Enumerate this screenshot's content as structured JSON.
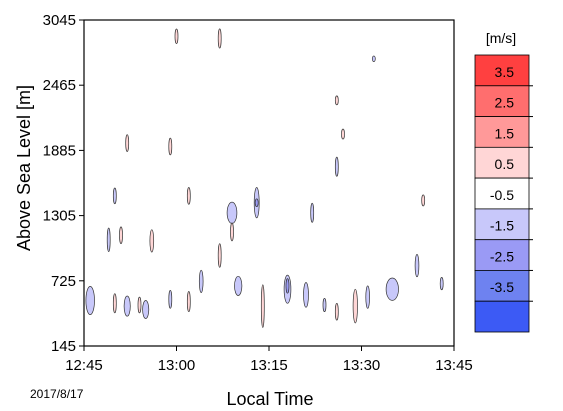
{
  "chart_data": {
    "type": "heatmap",
    "title": "",
    "xlabel": "Local Time",
    "ylabel": "Above Sea Level [m]",
    "x_ticks": [
      "12:45",
      "13:00",
      "13:15",
      "13:30",
      "13:45"
    ],
    "x_range": [
      "12:45",
      "13:45"
    ],
    "y_ticks": [
      145,
      725,
      1305,
      1885,
      2465,
      3045
    ],
    "y_range": [
      145,
      3045
    ],
    "date_label": "2017/8/17",
    "colorbar": {
      "unit_label": "[m/s]",
      "tick_labels": [
        "3.5",
        "2.5",
        "1.5",
        "0.5",
        "-0.5",
        "-1.5",
        "-2.5",
        "-3.5"
      ],
      "bands": [
        {
          "range": "above 3.5",
          "color": "#ff4040"
        },
        {
          "range": "2.5 to 3.5",
          "color": "#ff6e6e"
        },
        {
          "range": "1.5 to 2.5",
          "color": "#ff9999"
        },
        {
          "range": "0.5 to 1.5",
          "color": "#ffd6d6"
        },
        {
          "range": "-0.5 to 0.5",
          "color": "#ffffff"
        },
        {
          "range": "-1.5 to -0.5",
          "color": "#c8c8fa"
        },
        {
          "range": "-2.5 to -1.5",
          "color": "#9a9af5"
        },
        {
          "range": "-3.5 to -2.5",
          "color": "#6e82f0"
        },
        {
          "range": "below -3.5",
          "color": "#3c5af5"
        }
      ]
    },
    "regions": [
      {
        "t": "12:46",
        "alt": 550,
        "dt": 1.4,
        "dalt": 250,
        "level": -1
      },
      {
        "t": "12:52",
        "alt": 500,
        "dt": 1.0,
        "dalt": 180,
        "level": -1
      },
      {
        "t": "12:55",
        "alt": 470,
        "dt": 1.0,
        "dalt": 160,
        "level": -1
      },
      {
        "t": "12:59",
        "alt": 560,
        "dt": 0.5,
        "dalt": 160,
        "level": -1
      },
      {
        "t": "12:49",
        "alt": 1090,
        "dt": 0.4,
        "dalt": 210,
        "level": -1
      },
      {
        "t": "12:50",
        "alt": 1480,
        "dt": 0.4,
        "dalt": 140,
        "level": -1
      },
      {
        "t": "12:56",
        "alt": 1080,
        "dt": 0.6,
        "dalt": 200,
        "level": 1
      },
      {
        "t": "12:51",
        "alt": 1130,
        "dt": 0.4,
        "dalt": 150,
        "level": 1
      },
      {
        "t": "12:50",
        "alt": 525,
        "dt": 0.4,
        "dalt": 170,
        "level": 1
      },
      {
        "t": "12:54",
        "alt": 510,
        "dt": 0.4,
        "dalt": 140,
        "level": 1
      },
      {
        "t": "13:04",
        "alt": 720,
        "dt": 0.6,
        "dalt": 200,
        "level": -1
      },
      {
        "t": "13:09",
        "alt": 1330,
        "dt": 1.6,
        "dalt": 190,
        "level": -1
      },
      {
        "t": "13:13",
        "alt": 1420,
        "dt": 0.8,
        "dalt": 270,
        "level": -1
      },
      {
        "t": "13:13",
        "alt": 1420,
        "dt": 0.25,
        "dalt": 70,
        "level": -2
      },
      {
        "t": "13:10",
        "alt": 680,
        "dt": 1.2,
        "dalt": 170,
        "level": -1
      },
      {
        "t": "13:18",
        "alt": 650,
        "dt": 1.1,
        "dalt": 250,
        "level": -1
      },
      {
        "t": "13:18",
        "alt": 680,
        "dt": 0.4,
        "dalt": 130,
        "level": -2
      },
      {
        "t": "13:21",
        "alt": 600,
        "dt": 0.8,
        "dalt": 220,
        "level": -1
      },
      {
        "t": "13:24",
        "alt": 510,
        "dt": 0.3,
        "dalt": 120,
        "level": -1
      },
      {
        "t": "13:26",
        "alt": 1740,
        "dt": 0.35,
        "dalt": 170,
        "level": -1
      },
      {
        "t": "13:31",
        "alt": 580,
        "dt": 0.6,
        "dalt": 200,
        "level": -1
      },
      {
        "t": "13:35",
        "alt": 650,
        "dt": 2.0,
        "dalt": 200,
        "level": -1
      },
      {
        "t": "13:39",
        "alt": 860,
        "dt": 0.6,
        "dalt": 200,
        "level": -1
      },
      {
        "t": "13:43",
        "alt": 700,
        "dt": 0.4,
        "dalt": 110,
        "level": -1
      },
      {
        "t": "13:22",
        "alt": 1330,
        "dt": 0.3,
        "dalt": 170,
        "level": -1
      },
      {
        "t": "13:02",
        "alt": 1480,
        "dt": 0.2,
        "dalt": 150,
        "level": 1
      },
      {
        "t": "13:02",
        "alt": 540,
        "dt": 0.4,
        "dalt": 180,
        "level": 1
      },
      {
        "t": "13:07",
        "alt": 950,
        "dt": 0.2,
        "dalt": 210,
        "level": 1
      },
      {
        "t": "13:09",
        "alt": 1160,
        "dt": 0.25,
        "dalt": 160,
        "level": 1
      },
      {
        "t": "13:14",
        "alt": 500,
        "dt": 0.5,
        "dalt": 380,
        "level": 1
      },
      {
        "t": "13:26",
        "alt": 450,
        "dt": 0.3,
        "dalt": 150,
        "level": 1
      },
      {
        "t": "13:29",
        "alt": 500,
        "dt": 0.7,
        "dalt": 300,
        "level": 1
      },
      {
        "t": "13:40",
        "alt": 1440,
        "dt": 0.25,
        "dalt": 100,
        "level": 1
      },
      {
        "t": "12:59",
        "alt": 1920,
        "dt": 0.5,
        "dalt": 150,
        "level": 1
      },
      {
        "t": "12:52",
        "alt": 1950,
        "dt": 0.25,
        "dalt": 150,
        "level": 1
      },
      {
        "t": "13:00",
        "alt": 2900,
        "dt": 0.5,
        "dalt": 130,
        "level": 1
      },
      {
        "t": "13:07",
        "alt": 2880,
        "dt": 0.4,
        "dalt": 170,
        "level": 1
      },
      {
        "t": "13:26",
        "alt": 2330,
        "dt": 0.2,
        "dalt": 80,
        "level": 1
      },
      {
        "t": "13:27",
        "alt": 2030,
        "dt": 0.15,
        "dalt": 90,
        "level": 1
      },
      {
        "t": "13:32",
        "alt": 2700,
        "dt": 0.15,
        "dalt": 50,
        "level": -1
      }
    ]
  }
}
